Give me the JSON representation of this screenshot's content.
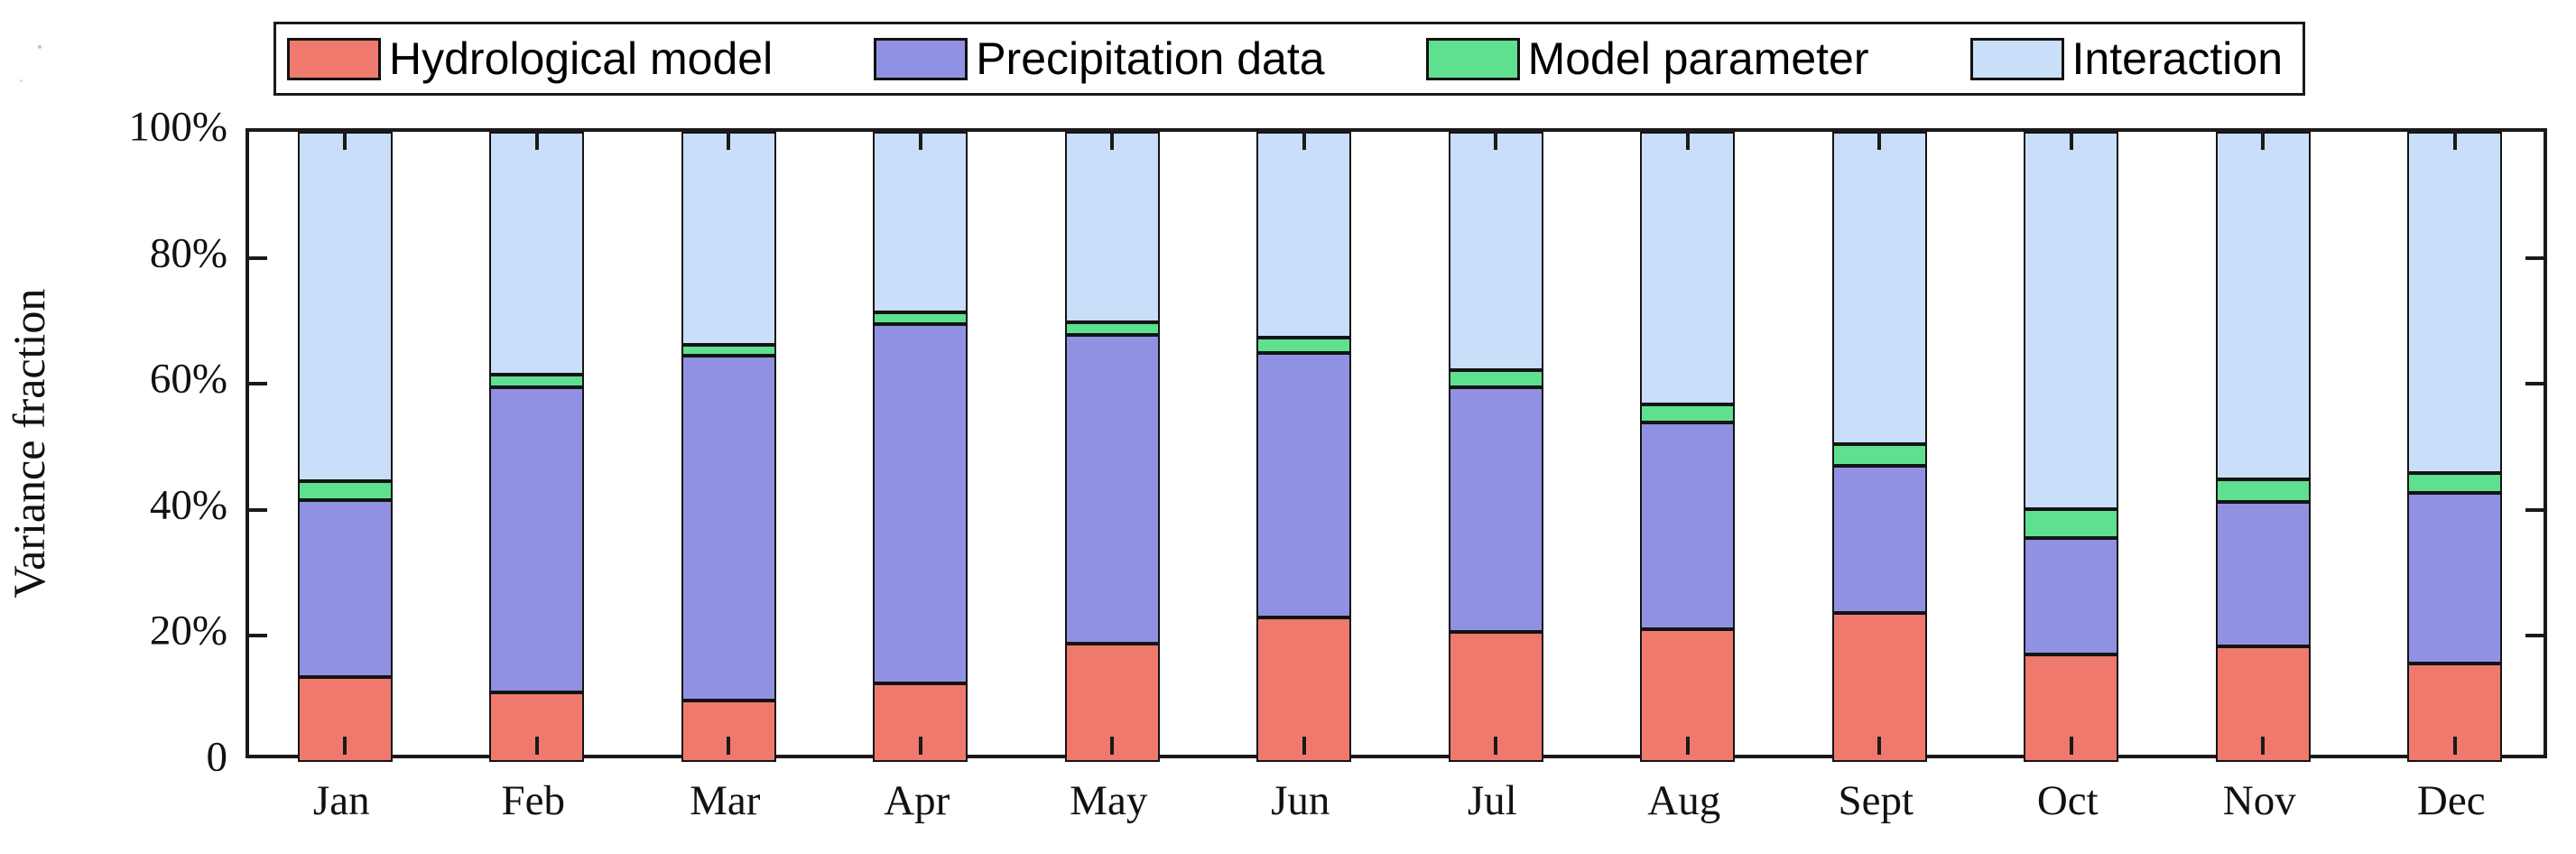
{
  "axis": {
    "ylabel": "Variance fraction",
    "ytick_labels": [
      "0",
      "20%",
      "40%",
      "60%",
      "80%",
      "100%"
    ]
  },
  "legend": {
    "items": [
      {
        "label": "Hydrological model",
        "color": "#EF796D"
      },
      {
        "label": "Precipitation data",
        "color": "#9191E3"
      },
      {
        "label": "Model parameter",
        "color": "#5FDF90"
      },
      {
        "label": "Interaction",
        "color": "#C9DEF9"
      }
    ]
  },
  "chart_data": {
    "type": "bar",
    "subtype": "stacked-vertical",
    "title": "",
    "xlabel": "",
    "ylabel": "Variance fraction",
    "categories": [
      "Jan",
      "Feb",
      "Mar",
      "Apr",
      "May",
      "Jun",
      "Jul",
      "Aug",
      "Sept",
      "Oct",
      "Nov",
      "Dec"
    ],
    "series": [
      {
        "name": "Hydrological model",
        "color": "#EF796D",
        "values": [
          13.5,
          11.0,
          9.7,
          12.4,
          18.7,
          22.9,
          20.7,
          21.1,
          23.6,
          17.1,
          18.3,
          15.6
        ]
      },
      {
        "name": "Precipitation data",
        "color": "#9191E3",
        "values": [
          28.1,
          48.5,
          54.8,
          57.1,
          49.1,
          42.0,
          38.7,
          32.8,
          23.4,
          18.5,
          23.0,
          27.1
        ]
      },
      {
        "name": "Model parameter",
        "color": "#5FDF90",
        "values": [
          3.0,
          2.0,
          1.7,
          1.8,
          2.0,
          2.5,
          2.8,
          2.8,
          3.5,
          4.5,
          3.5,
          3.1
        ]
      },
      {
        "name": "Interaction",
        "color": "#C9DEF9",
        "values": [
          55.4,
          38.5,
          33.8,
          28.7,
          30.2,
          32.6,
          37.8,
          43.3,
          49.5,
          59.9,
          55.2,
          54.2
        ]
      }
    ],
    "ylim": [
      0,
      100
    ],
    "yticks": [
      0,
      20,
      40,
      60,
      80,
      100
    ],
    "units": "percent",
    "grid": false,
    "legend_position": "top-center",
    "box": true,
    "ticks_inward_all_sides": true
  }
}
